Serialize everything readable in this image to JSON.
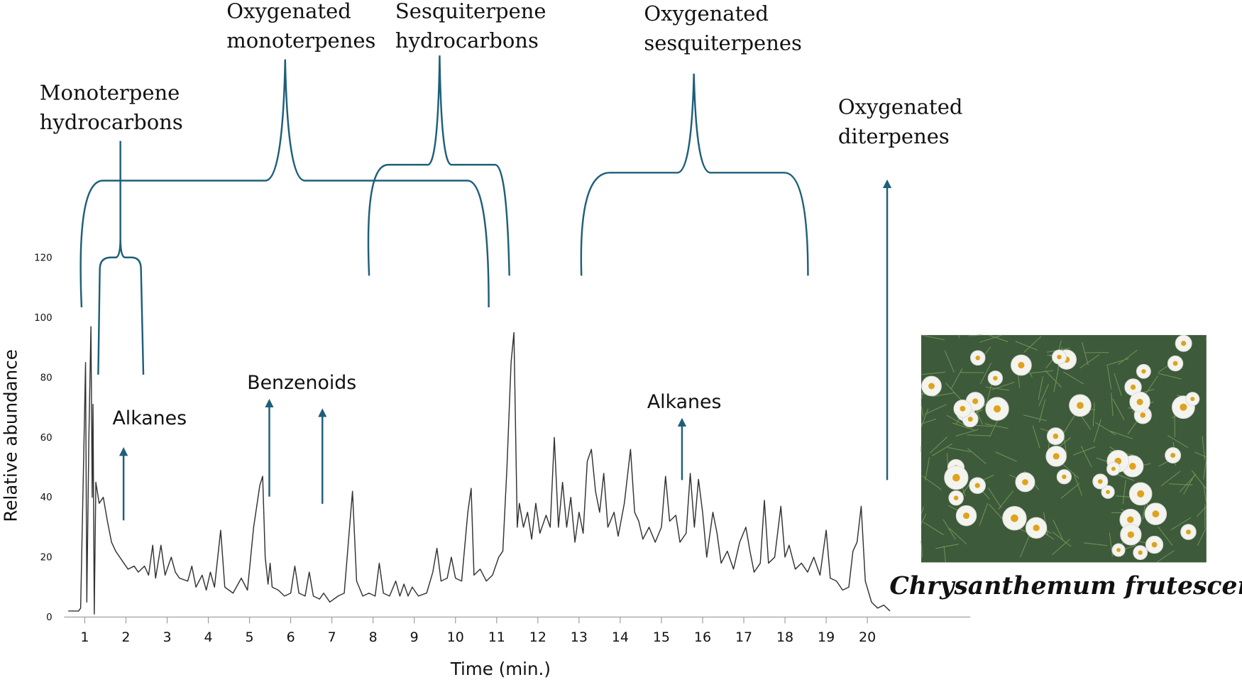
{
  "chart_data": {
    "type": "line",
    "xlabel": "Time (min.)",
    "ylabel": "Relative abundance",
    "xlim": [
      0.5,
      22.5
    ],
    "ylim": [
      0,
      120
    ],
    "xticks": [
      1,
      2,
      3,
      4,
      5,
      6,
      7,
      8,
      9,
      10,
      11,
      12,
      13,
      14,
      15,
      16,
      17,
      18,
      19,
      20
    ],
    "yticks": [
      0,
      20,
      40,
      60,
      80,
      100,
      120
    ],
    "color": "#333333",
    "group_labels": [
      [
        "Monoterpene",
        "hydrocarbons"
      ],
      [
        "Oxygenated",
        "monoterpenes"
      ],
      [
        "Sesquiterpene",
        "hydrocarbons"
      ],
      [
        "Oxygenated",
        "sesquiterpenes"
      ],
      [
        "Oxygenated",
        "diterpenes"
      ]
    ],
    "peak_labels": [
      "Alkanes",
      "Benzenoids",
      "Alkanes"
    ],
    "x": [
      0.6,
      0.85,
      0.9,
      0.97,
      1.02,
      1.05,
      1.1,
      1.15,
      1.18,
      1.2,
      1.23,
      1.27,
      1.35,
      1.45,
      1.55,
      1.65,
      1.75,
      1.85,
      1.95,
      2.05,
      2.2,
      2.3,
      2.45,
      2.55,
      2.65,
      2.72,
      2.85,
      2.95,
      3.1,
      3.2,
      3.3,
      3.5,
      3.6,
      3.7,
      3.85,
      3.95,
      4.05,
      4.15,
      4.3,
      4.4,
      4.6,
      4.8,
      4.95,
      5.1,
      5.25,
      5.32,
      5.38,
      5.45,
      5.5,
      5.55,
      5.7,
      5.85,
      6.0,
      6.1,
      6.2,
      6.35,
      6.45,
      6.55,
      6.7,
      6.8,
      6.95,
      7.15,
      7.3,
      7.4,
      7.5,
      7.6,
      7.75,
      7.9,
      8.05,
      8.15,
      8.25,
      8.4,
      8.55,
      8.65,
      8.75,
      8.85,
      8.95,
      9.1,
      9.3,
      9.45,
      9.55,
      9.65,
      9.8,
      9.9,
      10.0,
      10.15,
      10.3,
      10.38,
      10.45,
      10.6,
      10.75,
      10.9,
      11.05,
      11.15,
      11.25,
      11.35,
      11.42,
      11.5,
      11.55,
      11.65,
      11.75,
      11.85,
      11.95,
      12.05,
      12.2,
      12.3,
      12.4,
      12.5,
      12.6,
      12.7,
      12.8,
      12.9,
      13.0,
      13.1,
      13.2,
      13.3,
      13.4,
      13.5,
      13.6,
      13.7,
      13.85,
      13.95,
      14.1,
      14.25,
      14.35,
      14.45,
      14.55,
      14.7,
      14.85,
      15.0,
      15.1,
      15.2,
      15.35,
      15.45,
      15.6,
      15.7,
      15.8,
      15.9,
      16.0,
      16.1,
      16.25,
      16.35,
      16.45,
      16.6,
      16.75,
      16.9,
      17.05,
      17.15,
      17.25,
      17.4,
      17.5,
      17.6,
      17.75,
      17.9,
      18.0,
      18.1,
      18.25,
      18.4,
      18.55,
      18.7,
      18.85,
      19.0,
      19.1,
      19.25,
      19.4,
      19.55,
      19.65,
      19.75,
      19.85,
      19.95,
      20.1,
      20.25,
      20.4,
      20.55
    ],
    "values": [
      2,
      2,
      3,
      50,
      85,
      5,
      60,
      97,
      40,
      71,
      1,
      45,
      38,
      40,
      32,
      25,
      22,
      20,
      18,
      16,
      17,
      15,
      17,
      14,
      24,
      13,
      24,
      14,
      20,
      15,
      13,
      12,
      17,
      10,
      14,
      9,
      15,
      10,
      29,
      10,
      8,
      13,
      9,
      30,
      44,
      47,
      20,
      11,
      18,
      10,
      9,
      7,
      8,
      17,
      8,
      7,
      15,
      7,
      6,
      8,
      5,
      7,
      8,
      25,
      42,
      12,
      7,
      8,
      7,
      18,
      8,
      7,
      12,
      7,
      11,
      7,
      10,
      7,
      8,
      15,
      23,
      12,
      13,
      20,
      13,
      12,
      35,
      43,
      14,
      16,
      12,
      14,
      20,
      22,
      50,
      85,
      95,
      30,
      38,
      30,
      35,
      26,
      38,
      28,
      34,
      30,
      60,
      30,
      45,
      30,
      40,
      25,
      35,
      28,
      52,
      56,
      42,
      35,
      48,
      30,
      35,
      27,
      38,
      56,
      35,
      32,
      26,
      30,
      25,
      30,
      47,
      32,
      34,
      25,
      28,
      48,
      30,
      46,
      35,
      20,
      35,
      28,
      18,
      22,
      16,
      25,
      30,
      22,
      15,
      18,
      39,
      18,
      20,
      37,
      20,
      24,
      16,
      18,
      15,
      20,
      14,
      29,
      13,
      12,
      9,
      10,
      22,
      25,
      37,
      12,
      5,
      3,
      4,
      2
    ]
  },
  "figure_caption": "Chrysanthemum frutescens"
}
